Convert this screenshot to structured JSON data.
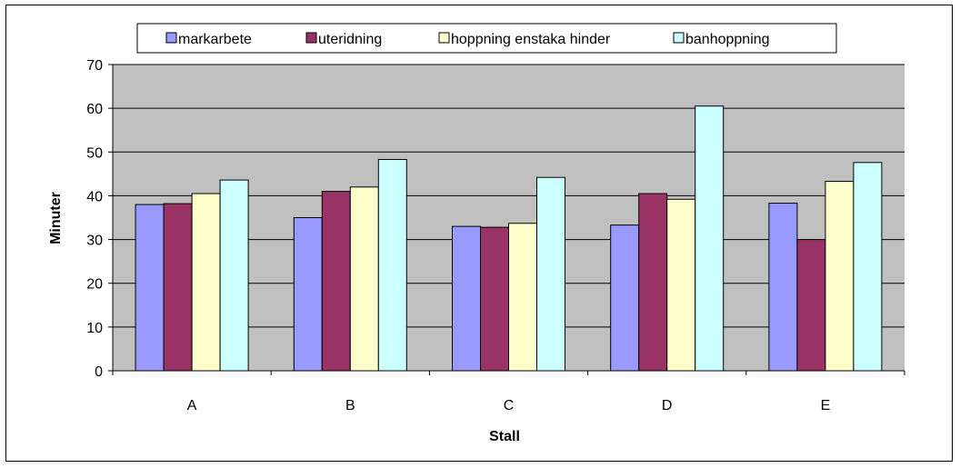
{
  "chart_data": {
    "type": "bar",
    "title": "",
    "xlabel": "Stall",
    "ylabel": "Minuter",
    "categories": [
      "A",
      "B",
      "C",
      "D",
      "E"
    ],
    "ylim": [
      0,
      70
    ],
    "yticks": [
      0,
      10,
      20,
      30,
      40,
      50,
      60,
      70
    ],
    "grid": true,
    "legend_position": "top",
    "plot_background": "#c0c0c0",
    "series": [
      {
        "name": "markarbete",
        "color": "#9999ff",
        "values": [
          38,
          35,
          33,
          33.3,
          38.3
        ]
      },
      {
        "name": "uteridning",
        "color": "#993366",
        "values": [
          38.2,
          41,
          32.8,
          40.5,
          30
        ]
      },
      {
        "name": "hoppning enstaka hinder",
        "color": "#ffffcc",
        "values": [
          40.5,
          42,
          33.7,
          39.2,
          43.3
        ]
      },
      {
        "name": "banhoppning",
        "color": "#ccffff",
        "values": [
          43.6,
          48.3,
          44.2,
          60.5,
          47.6
        ]
      }
    ]
  }
}
